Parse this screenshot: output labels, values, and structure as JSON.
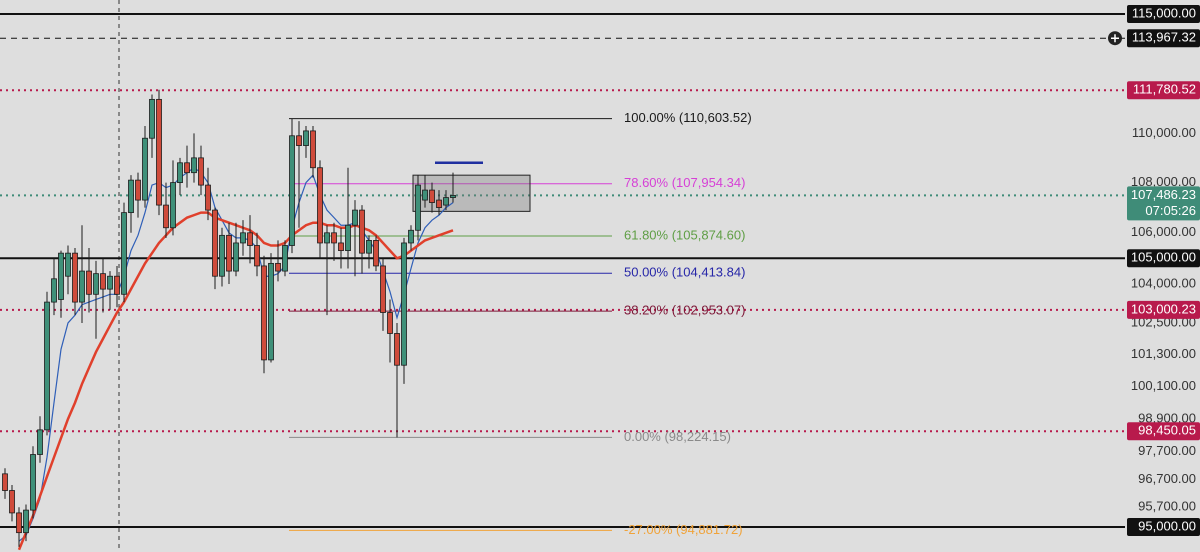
{
  "chart_data": {
    "type": "candlestick",
    "log_scale": true,
    "ylim": [
      94120,
      115600
    ],
    "yticks": [
      {
        "value": 110000,
        "label": "110,000.00"
      },
      {
        "value": 108000,
        "label": "108,000.00"
      },
      {
        "value": 106000,
        "label": "106,000.00"
      },
      {
        "value": 104000,
        "label": "104,000.00"
      },
      {
        "value": 102500,
        "label": "102,500.00"
      },
      {
        "value": 101300,
        "label": "101,300.00"
      },
      {
        "value": 100100,
        "label": "100,100.00"
      },
      {
        "value": 98900,
        "label": "98,900.00"
      },
      {
        "value": 97700,
        "label": "97,700.00"
      },
      {
        "value": 96700,
        "label": "96,700.00"
      },
      {
        "value": 95700,
        "label": "95,700.00"
      }
    ],
    "up_color": "#3f9079",
    "down_color": "#cf4b3b",
    "candles": {
      "open": [
        96900,
        96300,
        95500,
        94800,
        95600,
        97600,
        98500,
        103300,
        103400,
        104300,
        105200,
        103300,
        104500,
        103600,
        104400,
        103800,
        104300,
        103600,
        106800,
        108100,
        107300,
        109800,
        111400,
        107100,
        106200,
        108000,
        108800,
        108400,
        109000,
        107900,
        106900,
        104300,
        105900,
        104500,
        105600,
        106000,
        105500,
        104700,
        101100,
        104800,
        104500,
        105500,
        109900,
        109500,
        110100,
        108600,
        105600,
        106000,
        105600,
        105300,
        106300,
        106900,
        105200,
        105700,
        104700,
        102900,
        102100,
        100900,
        105600,
        106100,
        107300,
        107700,
        107300,
        107100,
        107400
      ],
      "high": [
        97100,
        96500,
        95700,
        95800,
        97900,
        99000,
        103700,
        105000,
        105300,
        105500,
        105400,
        106300,
        105400,
        104900,
        105000,
        104500,
        104700,
        107200,
        108300,
        108400,
        110300,
        111600,
        111800,
        108000,
        108900,
        109000,
        109500,
        110000,
        109500,
        108600,
        107000,
        106200,
        106400,
        106400,
        106500,
        106700,
        106000,
        105100,
        105200,
        105700,
        105700,
        110600,
        110500,
        110300,
        110300,
        108900,
        106300,
        106400,
        106200,
        108600,
        107300,
        107100,
        105900,
        105900,
        105000,
        103400,
        102500,
        105800,
        106300,
        108300,
        108300,
        108000,
        107700,
        107700,
        108400
      ],
      "low": [
        96000,
        95200,
        94300,
        94500,
        95300,
        97300,
        98300,
        102800,
        102700,
        103600,
        102800,
        102500,
        102900,
        101900,
        102900,
        103000,
        103100,
        103300,
        106000,
        106600,
        107000,
        109000,
        106700,
        105800,
        105900,
        107500,
        107800,
        108000,
        107500,
        106500,
        103800,
        103900,
        104000,
        104300,
        105100,
        104800,
        104300,
        100600,
        101000,
        104100,
        104300,
        105200,
        106200,
        109000,
        108200,
        105000,
        102800,
        104900,
        104600,
        104600,
        104300,
        104400,
        104600,
        104500,
        102200,
        101000,
        98224.15,
        100200,
        105300,
        105700,
        107000,
        106800,
        106700,
        106900,
        107200
      ],
      "close": [
        96300,
        95500,
        94800,
        95600,
        97600,
        98500,
        103300,
        104200,
        105200,
        105200,
        103300,
        104500,
        103600,
        104400,
        103800,
        104300,
        103600,
        106800,
        108100,
        107300,
        109800,
        111400,
        107100,
        106200,
        108000,
        108800,
        108400,
        109000,
        107900,
        106900,
        104300,
        105900,
        104500,
        105600,
        106000,
        105500,
        104700,
        101100,
        104800,
        104500,
        105500,
        109900,
        109500,
        110100,
        108600,
        105600,
        106000,
        105600,
        105300,
        106300,
        106900,
        105200,
        105700,
        104700,
        102900,
        102100,
        100900,
        105600,
        106100,
        107900,
        107700,
        107200,
        107000,
        107400,
        107486.23
      ]
    },
    "moving_averages": [
      {
        "color": "#2f5fb8",
        "values": [
          null,
          null,
          94500,
          94700,
          95300,
          96000,
          97500,
          99500,
          101500,
          102500,
          102800,
          103200,
          103300,
          103400,
          103500,
          103600,
          103600,
          104300,
          105300,
          105900,
          106800,
          107900,
          108000,
          107800,
          107900,
          108200,
          108400,
          108600,
          108400,
          108000,
          107000,
          106500,
          106000,
          105800,
          105800,
          105700,
          105400,
          104300,
          104300,
          104400,
          104700,
          106200,
          107200,
          108000,
          108300,
          107500,
          106900,
          106600,
          106300,
          106300,
          106400,
          106100,
          105700,
          105300,
          104500,
          103700,
          102700,
          103600,
          104600,
          105600,
          106200,
          106500,
          106700,
          107000,
          107200
        ]
      },
      {
        "color": "#e0402c",
        "values": [
          null,
          null,
          94200,
          94800,
          95400,
          96100,
          96800,
          97500,
          98200,
          98900,
          99500,
          100200,
          100800,
          101400,
          101900,
          102400,
          102900,
          103300,
          103800,
          104300,
          104800,
          105200,
          105600,
          105900,
          106200,
          106400,
          106600,
          106700,
          106800,
          106800,
          106600,
          106500,
          106400,
          106300,
          106200,
          106100,
          105900,
          105600,
          105500,
          105500,
          105600,
          105900,
          106100,
          106300,
          106400,
          106400,
          106300,
          106300,
          106200,
          106200,
          106300,
          106200,
          106100,
          105900,
          105600,
          105300,
          105000,
          105100,
          105300,
          105500,
          105700,
          105800,
          105900,
          106000,
          106100
        ]
      }
    ],
    "levels": [
      {
        "value": 115000,
        "label": "115,000.00",
        "color": "#111111",
        "style": "solid"
      },
      {
        "value": 113967.32,
        "label": "113,967.32",
        "color": "#111111",
        "style": "dashed"
      },
      {
        "value": 111780.52,
        "label": "111,780.52",
        "color": "#b81a4c",
        "style": "dotted"
      },
      {
        "value": 107486.23,
        "label": "107,486.23",
        "sublabel": "07:05:26",
        "color": "#3f8c78",
        "style": "dotted"
      },
      {
        "value": 105000,
        "label": "105,000.00",
        "color": "#111111",
        "style": "solid"
      },
      {
        "value": 103000.23,
        "label": "103,000.23",
        "color": "#b81a4c",
        "style": "dotted"
      },
      {
        "value": 98450.05,
        "label": "98,450.05",
        "color": "#b81a4c",
        "style": "dotted"
      },
      {
        "value": 95000,
        "label": "95,000.00",
        "color": "#111111",
        "style": "solid"
      }
    ],
    "fibonacci": [
      {
        "value": 110603.52,
        "label": "100.00% (110,603.52)",
        "color": "#1a1a1a"
      },
      {
        "value": 107954.34,
        "label": "78.60% (107,954.34)",
        "color": "#d640d6"
      },
      {
        "value": 105874.6,
        "label": "61.80% (105,874.60)",
        "color": "#5f9e45"
      },
      {
        "value": 104413.84,
        "label": "50.00% (104,413.84)",
        "color": "#2626a8"
      },
      {
        "value": 102953.07,
        "label": "38.20% (102,953.07)",
        "color": "#7d1838"
      },
      {
        "value": 98224.15,
        "label": "0.00% (98,224.15)",
        "color": "#8a8a8a"
      },
      {
        "value": 94881.72,
        "label": "-27.00% (94,881.72)",
        "color": "#f0a33a"
      }
    ],
    "box": {
      "low": 106850,
      "high": 108300
    },
    "target": 108800
  }
}
